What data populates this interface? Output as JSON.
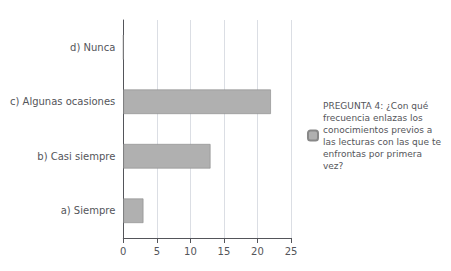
{
  "chart_data": {
    "type": "bar",
    "orientation": "horizontal",
    "categories": [
      "a) Siempre",
      "b) Casi siempre",
      "c) Algunas ocasiones",
      "d) Nunca"
    ],
    "series": [
      {
        "name": "PREGUNTA 4: ¿Con qué\nfrecuencia enlazas los\nconocimientos previos a\nlas lecturas con las que te\nenfrontas por primera\nvez?",
        "color": "#b0b0b0",
        "values": [
          3,
          13,
          22,
          0
        ]
      }
    ],
    "xlim": [
      0,
      25
    ],
    "xticks": [
      0,
      5,
      10,
      15,
      20,
      25
    ],
    "grid": true,
    "legend": "right"
  }
}
